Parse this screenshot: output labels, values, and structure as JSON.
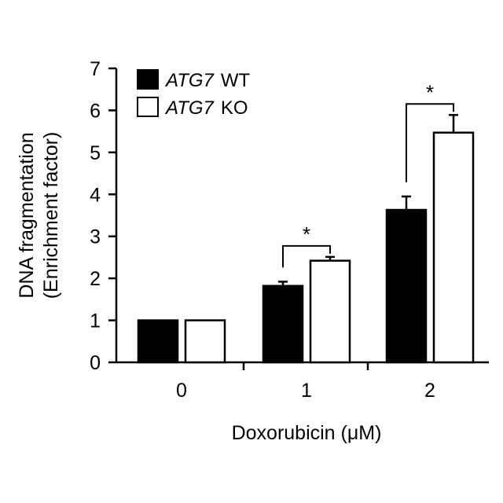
{
  "chart_data": {
    "type": "bar",
    "xlabel": "Doxorubicin (μM)",
    "ylabel_line1": "DNA fragmentation",
    "ylabel_line2": "(Enrichment factor)",
    "ylim": [
      0,
      7
    ],
    "yticks": [
      0,
      1,
      2,
      3,
      4,
      5,
      6,
      7
    ],
    "categories": [
      "0",
      "1",
      "2"
    ],
    "series": [
      {
        "name": "ATG7 WT",
        "gene": "ATG7",
        "genotype": "WT",
        "fill": "#000000",
        "values": [
          1.0,
          1.82,
          3.63
        ],
        "errors": [
          0.0,
          0.1,
          0.32
        ]
      },
      {
        "name": "ATG7 KO",
        "gene": "ATG7",
        "genotype": "KO",
        "fill": "#ffffff",
        "values": [
          1.0,
          2.42,
          5.47
        ],
        "errors": [
          0.0,
          0.09,
          0.42
        ]
      }
    ],
    "significance": [
      {
        "category": "1",
        "label": "*"
      },
      {
        "category": "2",
        "label": "*"
      }
    ],
    "legend_position": "top-left",
    "grid": false
  }
}
